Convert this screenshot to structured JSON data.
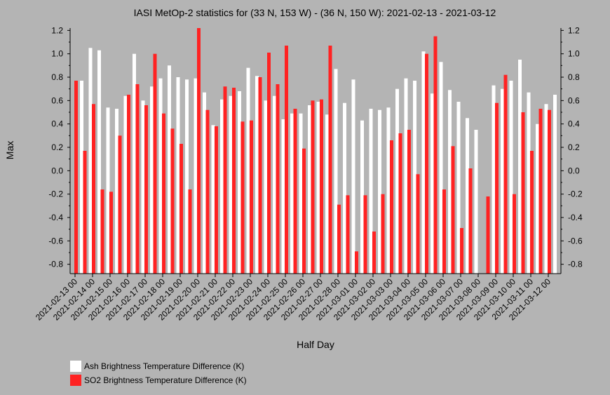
{
  "chart_data": {
    "type": "bar",
    "title": "IASI MetOp-2 statistics for (33 N, 153 W) - (36 N, 150 W): 2021-02-13 - 2021-03-12",
    "xlabel": "Half Day",
    "ylabel": "Max",
    "ylim": [
      -0.88,
      1.22
    ],
    "yticks": [
      "1.2",
      "1.0",
      "0.8",
      "0.6",
      "0.4",
      "0.2",
      "0.0",
      "-0.2",
      "-0.4",
      "-0.6",
      "-0.8"
    ],
    "categories": [
      "2021-02-13 00",
      "2021-02-13 12",
      "2021-02-14 00",
      "2021-02-14 12",
      "2021-02-15 00",
      "2021-02-15 12",
      "2021-02-16 00",
      "2021-02-16 12",
      "2021-02-17 00",
      "2021-02-17 12",
      "2021-02-18 00",
      "2021-02-18 12",
      "2021-02-19 00",
      "2021-02-19 12",
      "2021-02-20 00",
      "2021-02-20 12",
      "2021-02-21 00",
      "2021-02-21 12",
      "2021-02-22 00",
      "2021-02-22 12",
      "2021-02-23 00",
      "2021-02-23 12",
      "2021-02-24 00",
      "2021-02-24 12",
      "2021-02-25 00",
      "2021-02-25 12",
      "2021-02-26 00",
      "2021-02-26 12",
      "2021-02-27 00",
      "2021-02-27 12",
      "2021-02-28 00",
      "2021-02-28 12",
      "2021-03-01 00",
      "2021-03-01 12",
      "2021-03-02 00",
      "2021-03-02 12",
      "2021-03-03 00",
      "2021-03-03 12",
      "2021-03-04 00",
      "2021-03-04 12",
      "2021-03-05 00",
      "2021-03-05 12",
      "2021-03-06 00",
      "2021-03-06 12",
      "2021-03-07 00",
      "2021-03-07 12",
      "2021-03-08 00",
      "2021-03-08 12",
      "2021-03-09 00",
      "2021-03-09 12",
      "2021-03-10 00",
      "2021-03-10 12",
      "2021-03-11 00",
      "2021-03-11 12",
      "2021-03-12 00",
      "2021-03-12 12"
    ],
    "xticks": [
      "2021-02-13 00",
      "2021-02-14 00",
      "2021-02-15 00",
      "2021-02-16 00",
      "2021-02-17 00",
      "2021-02-18 00",
      "2021-02-19 00",
      "2021-02-20 00",
      "2021-02-21 00",
      "2021-02-22 00",
      "2021-02-23 00",
      "2021-02-24 00",
      "2021-02-25 00",
      "2021-02-26 00",
      "2021-02-27 00",
      "2021-02-28 00",
      "2021-03-01 00",
      "2021-03-02 00",
      "2021-03-03 00",
      "2021-03-04 00",
      "2021-03-05 00",
      "2021-03-06 00",
      "2021-03-07 00",
      "2021-03-08 00",
      "2021-03-09 00",
      "2021-03-10 00",
      "2021-03-11 00",
      "2021-03-12 00"
    ],
    "series": [
      {
        "name": "Ash Brightness Temperature Difference (K)",
        "color": "#ffffff",
        "values": [
          0.77,
          1.05,
          1.03,
          0.54,
          0.53,
          0.64,
          1.0,
          0.6,
          0.72,
          0.79,
          0.9,
          0.8,
          0.78,
          0.79,
          0.67,
          0.39,
          0.61,
          0.64,
          0.68,
          0.88,
          0.81,
          0.6,
          0.64,
          0.44,
          0.49,
          0.49,
          0.56,
          0.59,
          0.48,
          0.87,
          0.58,
          0.78,
          0.43,
          0.53,
          0.52,
          0.54,
          0.7,
          0.79,
          0.77,
          1.02,
          0.66,
          0.93,
          0.69,
          0.59,
          0.45,
          0.35,
          null,
          0.73,
          0.7,
          0.77,
          0.95,
          0.67,
          0.4,
          0.57,
          0.65,
          null
        ]
      },
      {
        "name": "SO2 Brightness Temperature Difference (K)",
        "color": "#ff2222",
        "values": [
          0.77,
          0.17,
          0.57,
          -0.16,
          -0.18,
          0.3,
          0.65,
          0.74,
          0.56,
          1.0,
          0.49,
          0.36,
          0.23,
          -0.16,
          1.22,
          0.52,
          0.38,
          0.72,
          0.71,
          0.42,
          0.43,
          0.8,
          1.01,
          0.74,
          1.07,
          0.53,
          0.19,
          0.6,
          0.61,
          1.07,
          -0.29,
          -0.21,
          -0.69,
          -0.21,
          -0.52,
          -0.2,
          0.26,
          0.32,
          0.35,
          -0.03,
          1.0,
          1.15,
          -0.16,
          0.21,
          -0.49,
          0.02,
          null,
          -0.22,
          0.58,
          0.82,
          -0.2,
          0.5,
          0.17,
          0.53,
          0.52,
          null
        ]
      }
    ],
    "legend_position": "bottom-left"
  }
}
